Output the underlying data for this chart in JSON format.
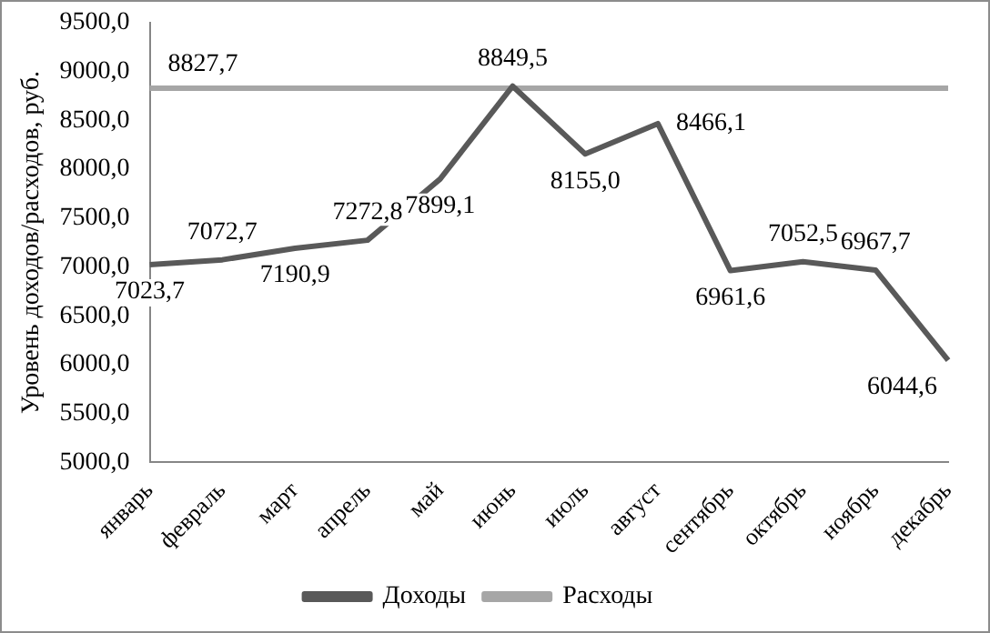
{
  "chart_data": {
    "type": "line",
    "ylabel": "Уровень доходов/расходов, руб.",
    "categories": [
      "январь",
      "февраль",
      "март",
      "апрель",
      "май",
      "июнь",
      "июль",
      "август",
      "сентябрь",
      "октябрь",
      "ноябрь",
      "декабрь"
    ],
    "series": [
      {
        "name": "Доходы",
        "color": "#595959",
        "values": [
          7023.7,
          7072.7,
          7190.9,
          7272.8,
          7899.1,
          8849.5,
          8155.0,
          8466.1,
          6961.6,
          7052.5,
          6967.7,
          6044.6
        ],
        "value_labels": [
          "7023,7",
          "7072,7",
          "7190,9",
          "7272,8",
          "7899,1",
          "8849,5",
          "8155,0",
          "8466,1",
          "6961,6",
          "7052,5",
          "6967,7",
          "6044,6"
        ]
      },
      {
        "name": "Расходы",
        "color": "#a6a6a6",
        "values": [
          8827.7,
          8827.7,
          8827.7,
          8827.7,
          8827.7,
          8827.7,
          8827.7,
          8827.7,
          8827.7,
          8827.7,
          8827.7,
          8827.7
        ],
        "value_labels": [
          "8827,7",
          null,
          null,
          null,
          null,
          null,
          null,
          null,
          null,
          null,
          null,
          null
        ]
      }
    ],
    "ylim": [
      5000,
      9500
    ],
    "yticks": [
      {
        "value": 5000,
        "label": "5000,0"
      },
      {
        "value": 5500,
        "label": "5500,0"
      },
      {
        "value": 6000,
        "label": "6000,0"
      },
      {
        "value": 6500,
        "label": "6500,0"
      },
      {
        "value": 7000,
        "label": "7000,0"
      },
      {
        "value": 7500,
        "label": "7500,0"
      },
      {
        "value": 8000,
        "label": "8000,0"
      },
      {
        "value": 8500,
        "label": "8500,0"
      },
      {
        "value": 9000,
        "label": "9000,0"
      },
      {
        "value": 9500,
        "label": "9500,0"
      }
    ],
    "grid": false,
    "legend": "bottom",
    "marker": "none",
    "line_style": "solid"
  }
}
